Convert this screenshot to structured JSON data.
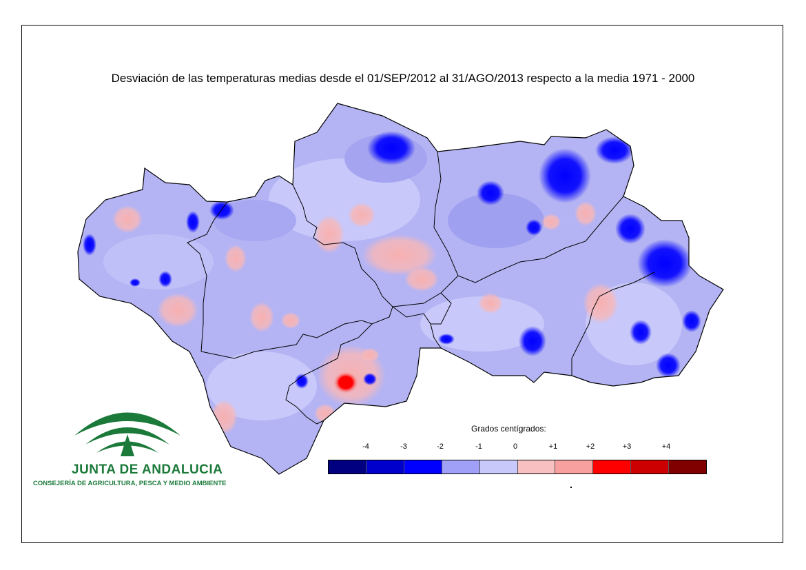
{
  "title": "Desviación de las temperaturas medias desde el 01/SEP/2012 al 31/AGO/2013 respecto a la media 1971 - 2000",
  "legend": {
    "title": "Grados centígrados:",
    "labels": [
      "-4",
      "-3",
      "-2",
      "-1",
      "0",
      "+1",
      "+2",
      "+3",
      "+4"
    ],
    "colors": [
      "#000080",
      "#0000cc",
      "#0000ff",
      "#a0a0f8",
      "#c8c8fa",
      "#f8c0c0",
      "#f8a0a0",
      "#ff0000",
      "#cc0000",
      "#800000"
    ]
  },
  "map": {
    "base_color": "#b4b4f4",
    "border_color": "#000000"
  },
  "logo": {
    "name": "JUNTA DE ANDALUCIA",
    "department": "CONSEJERÍA DE AGRICULTURA, PESCA Y MEDIO AMBIENTE",
    "color": "#1b7a3a"
  }
}
